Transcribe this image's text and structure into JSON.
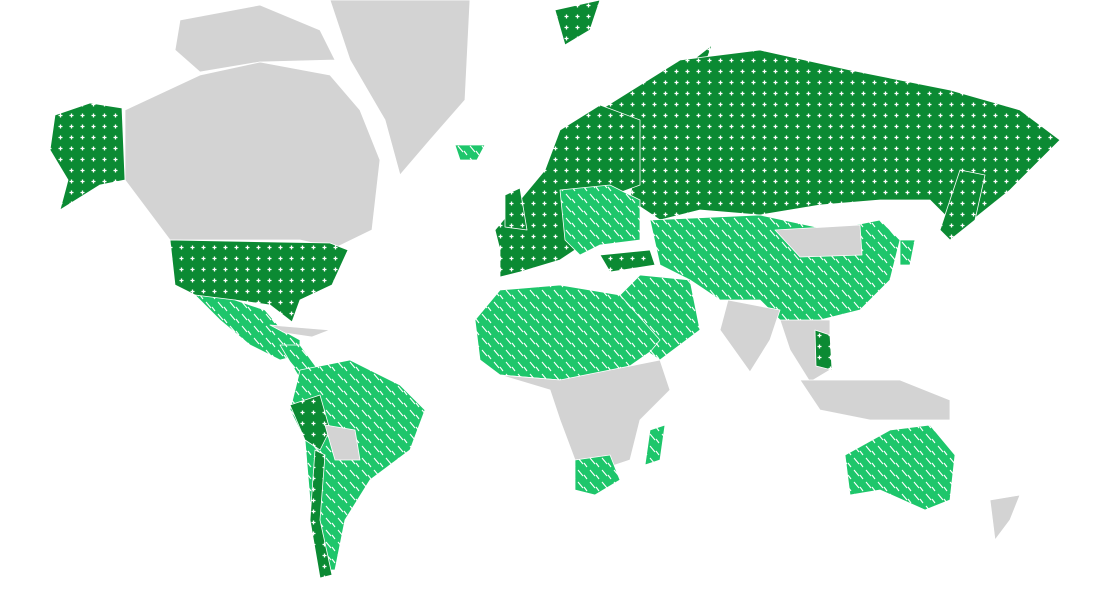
{
  "map": {
    "colors": {
      "background": "#ffffff",
      "no_data": "#d3d3d3",
      "category_dark": "#0b8a33",
      "category_light": "#1ec66b",
      "pattern_mark": "#ffffff"
    },
    "patterns": {
      "category_dark": "plus-grid",
      "category_light": "diagonal-dashes"
    },
    "projection": "mercator",
    "legend": null
  }
}
